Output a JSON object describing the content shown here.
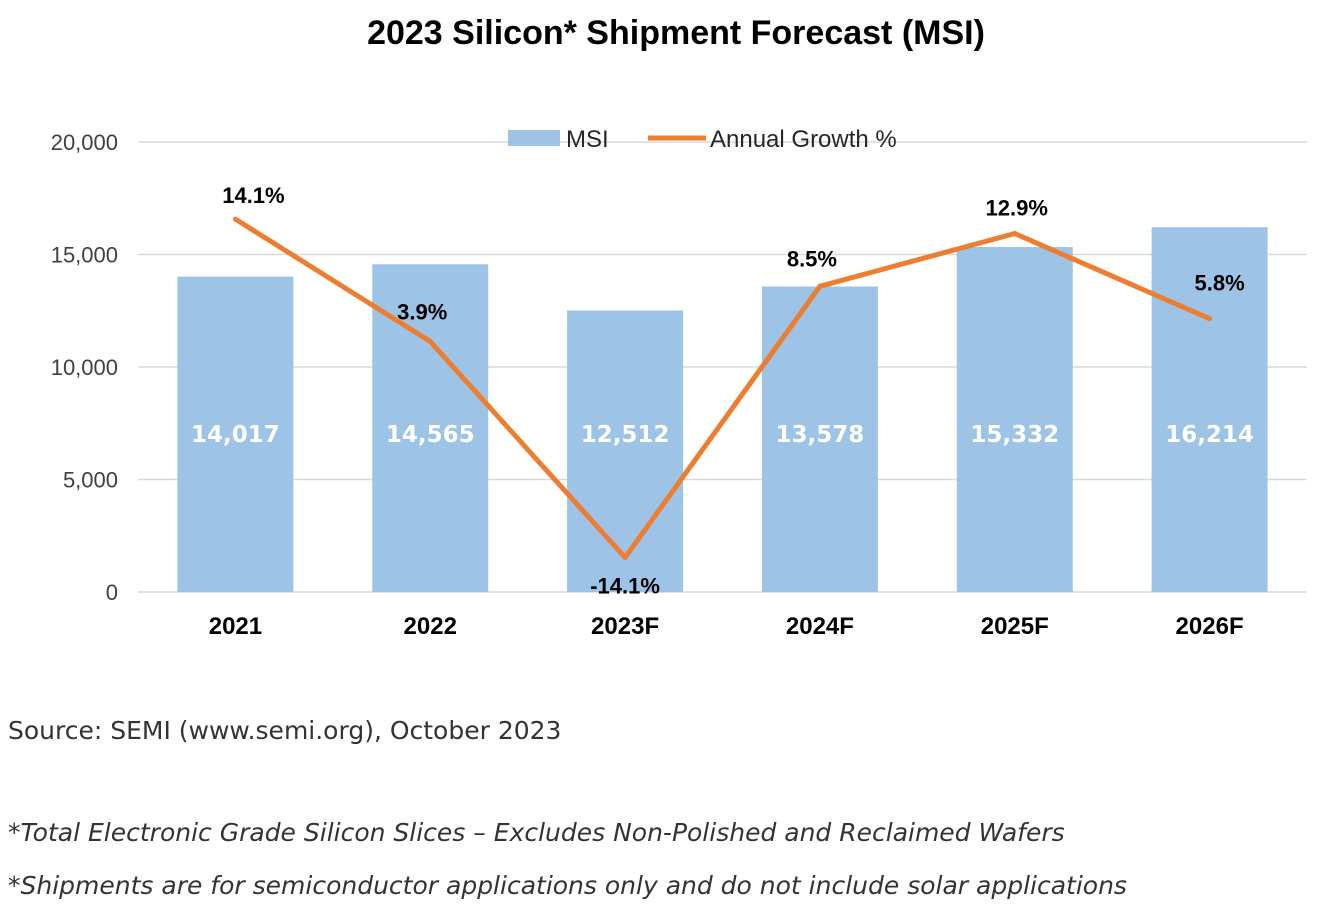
{
  "title": "2023 Silicon* Shipment Forecast (MSI)",
  "source": "Source: SEMI (www.semi.org), October 2023",
  "footnotes": [
    "*Total Electronic Grade Silicon Slices – Excludes Non-Polished and Reclaimed Wafers",
    "*Shipments are for semiconductor applications only and do not include solar applications"
  ],
  "colors": {
    "bar": "#9dc3e6",
    "line": "#ed7d31",
    "grid": "#d9d9d9"
  },
  "chart_data": {
    "type": "bar",
    "title": "2023 Silicon* Shipment Forecast (MSI)",
    "categories": [
      "2021",
      "2022",
      "2023F",
      "2024F",
      "2025F",
      "2026F"
    ],
    "series": [
      {
        "name": "MSI",
        "type": "bar",
        "values": [
          14017,
          14565,
          12512,
          13578,
          15332,
          16214
        ],
        "labels": [
          "14,017",
          "14,565",
          "12,512",
          "13,578",
          "15,332",
          "16,214"
        ]
      },
      {
        "name": "Annual Growth %",
        "type": "line",
        "values": [
          14.1,
          3.9,
          -14.1,
          8.5,
          12.9,
          5.8
        ],
        "labels": [
          "14.1%",
          "3.9%",
          "-14.1%",
          "8.5%",
          "12.9%",
          "5.8%"
        ]
      }
    ],
    "ylim": [
      0,
      20000
    ],
    "yticks": [
      "0",
      "5,000",
      "10,000",
      "15,000",
      "20,000"
    ],
    "grid": true,
    "legend": "top-center"
  }
}
